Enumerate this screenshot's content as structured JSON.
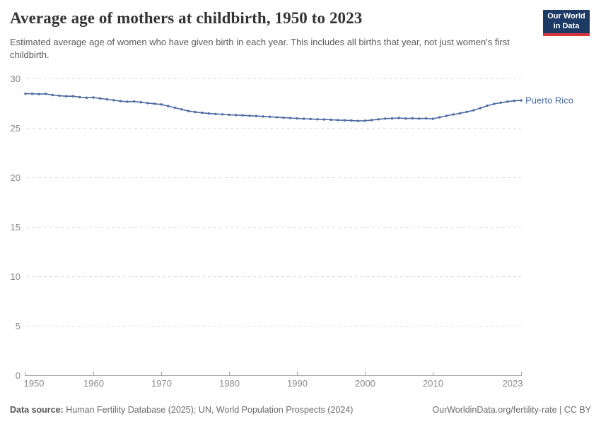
{
  "header": {
    "title": "Average age of mothers at childbirth, 1950 to 2023",
    "subtitle": "Estimated average age of women who have given birth in each year. This includes all births that year, not just women's first childbirth."
  },
  "logo": {
    "line1": "Our World",
    "line2": "in Data",
    "bg_color": "#1c3a63",
    "accent_color": "#d6353b"
  },
  "chart_data": {
    "type": "line",
    "title": "Average age of mothers at childbirth, 1950 to 2023",
    "xlabel": "",
    "ylabel": "",
    "xlim": [
      1950,
      2023
    ],
    "ylim": [
      0,
      30
    ],
    "grid": "horizontal-dashed",
    "legend_position": "end-of-line-label",
    "colors": {
      "line": "#4c6ba3",
      "gridline": "#dadada",
      "axis": "#a5a5a5",
      "tick_text": "#8a8a8a"
    },
    "yticks": [
      {
        "value": 0,
        "label": "0"
      },
      {
        "value": 5,
        "label": "5"
      },
      {
        "value": 10,
        "label": "10"
      },
      {
        "value": 15,
        "label": "15"
      },
      {
        "value": 20,
        "label": "20"
      },
      {
        "value": 25,
        "label": "25"
      },
      {
        "value": 30,
        "label": "30"
      }
    ],
    "xticks": [
      {
        "value": 1950,
        "label": "1950"
      },
      {
        "value": 1960,
        "label": "1960"
      },
      {
        "value": 1970,
        "label": "1970"
      },
      {
        "value": 1980,
        "label": "1980"
      },
      {
        "value": 1990,
        "label": "1990"
      },
      {
        "value": 2000,
        "label": "2000"
      },
      {
        "value": 2010,
        "label": "2010"
      },
      {
        "value": 2023,
        "label": "2023"
      }
    ],
    "series": [
      {
        "name": "Puerto Rico",
        "color": "#4c6ba3",
        "x": [
          1950,
          1951,
          1952,
          1953,
          1954,
          1955,
          1956,
          1957,
          1958,
          1959,
          1960,
          1961,
          1962,
          1963,
          1964,
          1965,
          1966,
          1967,
          1968,
          1969,
          1970,
          1971,
          1972,
          1973,
          1974,
          1975,
          1976,
          1977,
          1978,
          1979,
          1980,
          1981,
          1982,
          1983,
          1984,
          1985,
          1986,
          1987,
          1988,
          1989,
          1990,
          1991,
          1992,
          1993,
          1994,
          1995,
          1996,
          1997,
          1998,
          1999,
          2000,
          2001,
          2002,
          2003,
          2004,
          2005,
          2006,
          2007,
          2008,
          2009,
          2010,
          2011,
          2012,
          2013,
          2014,
          2015,
          2016,
          2017,
          2018,
          2019,
          2020,
          2021,
          2022,
          2023
        ],
        "values": [
          28.46,
          28.45,
          28.42,
          28.44,
          28.32,
          28.26,
          28.2,
          28.21,
          28.11,
          28.05,
          28.07,
          27.98,
          27.89,
          27.8,
          27.71,
          27.65,
          27.67,
          27.59,
          27.51,
          27.44,
          27.37,
          27.21,
          27.04,
          26.87,
          26.71,
          26.6,
          26.53,
          26.46,
          26.41,
          26.37,
          26.33,
          26.3,
          26.27,
          26.23,
          26.2,
          26.16,
          26.12,
          26.08,
          26.04,
          26.0,
          25.96,
          25.93,
          25.9,
          25.87,
          25.85,
          25.82,
          25.79,
          25.77,
          25.74,
          25.71,
          25.73,
          25.79,
          25.87,
          25.94,
          25.96,
          26.0,
          25.95,
          25.97,
          25.94,
          25.96,
          25.92,
          26.07,
          26.22,
          26.36,
          26.48,
          26.62,
          26.78,
          27.0,
          27.24,
          27.42,
          27.55,
          27.66,
          27.74,
          27.78
        ]
      }
    ]
  },
  "footer": {
    "datasource_label": "Data source:",
    "datasource_text": "Human Fertility Database (2025); UN, World Population Prospects (2024)",
    "link_text": "OurWorldinData.org/fertility-rate | CC BY"
  }
}
